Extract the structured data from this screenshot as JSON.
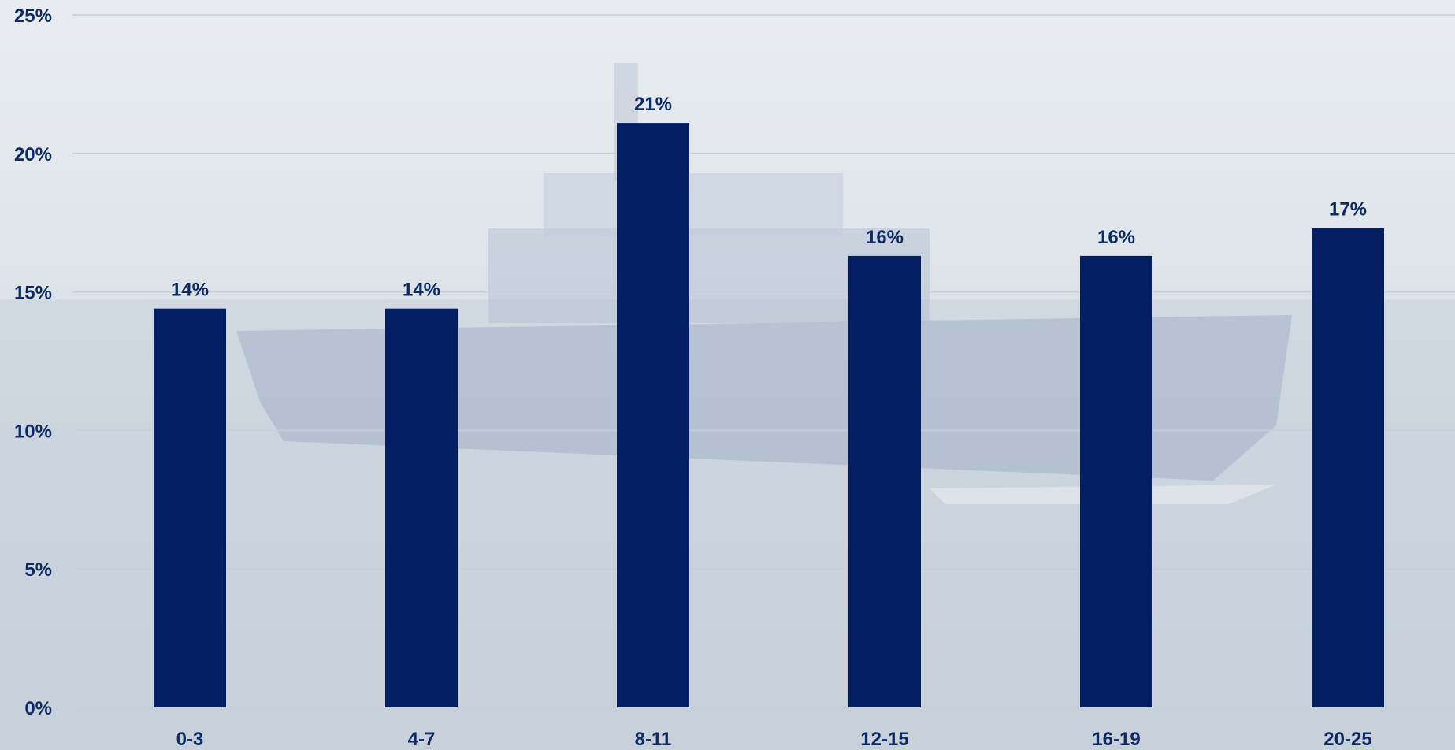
{
  "chart_data": {
    "type": "bar",
    "categories": [
      "0-3",
      "4-7",
      "8-11",
      "12-15",
      "16-19",
      "20-25"
    ],
    "values": [
      14.4,
      14.4,
      21.1,
      16.3,
      16.3,
      17.3
    ],
    "data_labels": [
      "14%",
      "14%",
      "21%",
      "16%",
      "16%",
      "17%"
    ],
    "title": "",
    "xlabel": "",
    "ylabel": "",
    "ylim": [
      0,
      25
    ],
    "y_ticks": [
      0,
      5,
      10,
      15,
      20,
      25
    ],
    "y_tick_labels": [
      "0%",
      "5%",
      "10%",
      "15%",
      "20%",
      "25%"
    ],
    "grid": true,
    "legend": "none",
    "colors": {
      "bar": "#041e63",
      "text": "#0b2a66",
      "grid": "#c8ced6",
      "background_sky": "#e8ecf0",
      "background_sea": "#c7d0d8",
      "ship_watermark": "#a9b4c8"
    }
  },
  "background": {
    "image_subject": "ship-watermark-icon"
  }
}
